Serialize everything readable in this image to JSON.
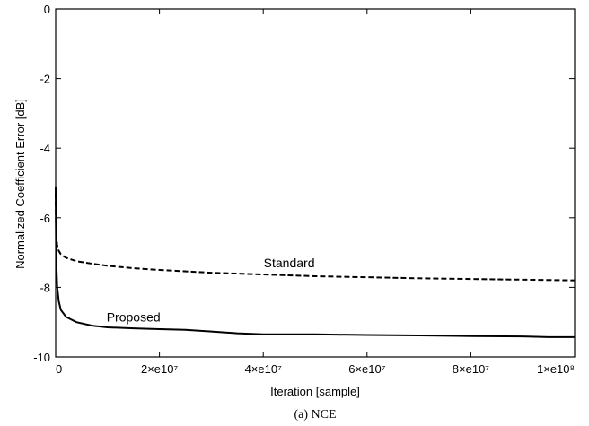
{
  "chart_data": {
    "type": "line",
    "title": "",
    "caption": "(a) NCE",
    "xlabel": "Iteration [sample]",
    "ylabel": "Normalized Coefficient Error [dB]",
    "xlim": [
      0,
      100000000
    ],
    "ylim": [
      -10,
      0
    ],
    "xticks": [
      {
        "value": 0,
        "label": "0"
      },
      {
        "value": 20000000,
        "label": "2×e10⁷"
      },
      {
        "value": 40000000,
        "label": "4×e10⁷"
      },
      {
        "value": 60000000,
        "label": "6×e10⁷"
      },
      {
        "value": 80000000,
        "label": "8×e10⁷"
      },
      {
        "value": 100000000,
        "label": "1×e10⁸"
      }
    ],
    "yticks": [
      {
        "value": 0,
        "label": "0"
      },
      {
        "value": -2,
        "label": "-2"
      },
      {
        "value": -4,
        "label": "-4"
      },
      {
        "value": -6,
        "label": "-6"
      },
      {
        "value": -8,
        "label": "-8"
      },
      {
        "value": -10,
        "label": "-10"
      }
    ],
    "grid": false,
    "series": [
      {
        "name": "Standard",
        "line_style": "dashed",
        "color": "#000000",
        "x": [
          0,
          100000,
          300000,
          600000,
          1000000,
          2000000,
          4000000,
          7000000,
          10000000,
          15000000,
          20000000,
          30000000,
          40000000,
          50000000,
          60000000,
          70000000,
          80000000,
          90000000,
          95000000,
          100000000
        ],
        "y": [
          -5.3,
          -6.5,
          -6.8,
          -6.95,
          -7.05,
          -7.15,
          -7.25,
          -7.32,
          -7.38,
          -7.45,
          -7.5,
          -7.58,
          -7.63,
          -7.68,
          -7.71,
          -7.74,
          -7.76,
          -7.78,
          -7.79,
          -7.8
        ]
      },
      {
        "name": "Proposed",
        "line_style": "solid",
        "color": "#000000",
        "x": [
          0,
          100000,
          300000,
          600000,
          1000000,
          2000000,
          4000000,
          7000000,
          10000000,
          15000000,
          20000000,
          25000000,
          30000000,
          35000000,
          40000000,
          50000000,
          60000000,
          70000000,
          80000000,
          90000000,
          95000000,
          100000000
        ],
        "y": [
          -5.1,
          -7.2,
          -8.0,
          -8.4,
          -8.65,
          -8.85,
          -9.0,
          -9.1,
          -9.15,
          -9.18,
          -9.2,
          -9.22,
          -9.27,
          -9.32,
          -9.35,
          -9.35,
          -9.37,
          -9.38,
          -9.4,
          -9.41,
          -9.43,
          -9.43
        ]
      }
    ],
    "annotations": [
      {
        "text": "Standard",
        "x": 45000000,
        "y": -7.3
      },
      {
        "text": "Proposed",
        "x": 15000000,
        "y": -8.85
      }
    ]
  }
}
